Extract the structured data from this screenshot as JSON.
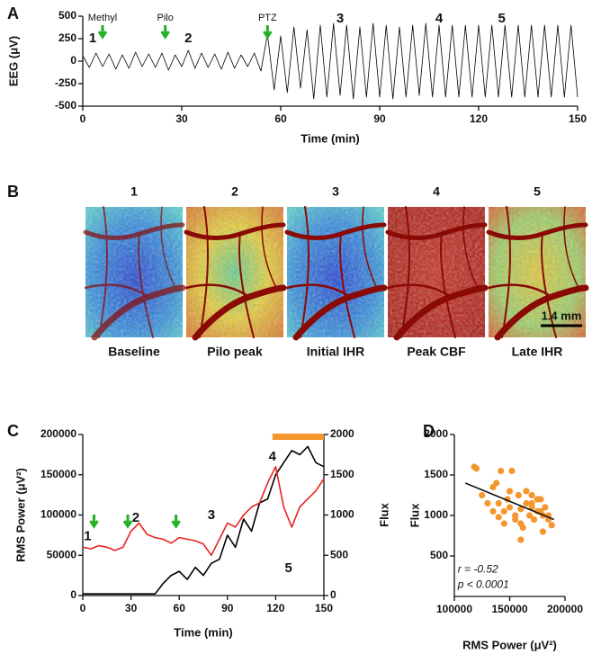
{
  "panels": [
    "A",
    "B",
    "C",
    "D"
  ],
  "images": {
    "items": [
      {
        "number": "1",
        "caption": "Baseline"
      },
      {
        "number": "2",
        "caption": "Pilo peak"
      },
      {
        "number": "3",
        "caption": "Initial IHR"
      },
      {
        "number": "4",
        "caption": "Peak CBF"
      },
      {
        "number": "5",
        "caption": "Late IHR"
      }
    ],
    "scale_bar": "1.4 mm"
  },
  "chart_data": [
    {
      "type": "line",
      "xlabel": "Time (min)",
      "ylabel": "EEG (μV)",
      "color": "#000000",
      "xlim": [
        0,
        150
      ],
      "xticks": [
        0,
        30,
        60,
        90,
        120,
        150
      ],
      "ylim": [
        -500,
        500
      ],
      "yticks": [
        500,
        250,
        0,
        -250,
        -500
      ],
      "x": [
        0,
        2,
        4,
        6,
        8,
        10,
        12,
        14,
        16,
        18,
        20,
        22,
        24,
        26,
        28,
        30,
        32,
        34,
        36,
        38,
        40,
        42,
        44,
        46,
        48,
        50,
        52,
        54,
        56,
        58,
        60,
        62,
        64,
        66,
        68,
        70,
        72,
        74,
        76,
        78,
        80,
        82,
        84,
        86,
        88,
        90,
        92,
        94,
        96,
        98,
        100,
        102,
        104,
        106,
        108,
        110,
        112,
        114,
        116,
        118,
        120,
        122,
        124,
        126,
        128,
        130,
        132,
        134,
        136,
        138,
        140,
        142,
        144,
        146,
        148,
        150
      ],
      "values": [
        60,
        -70,
        90,
        -60,
        80,
        -90,
        70,
        -80,
        100,
        -60,
        80,
        -70,
        90,
        -100,
        70,
        -60,
        120,
        -80,
        90,
        -70,
        80,
        -90,
        100,
        -80,
        70,
        -60,
        90,
        -110,
        300,
        -320,
        280,
        -350,
        380,
        -300,
        350,
        -420,
        400,
        -400,
        420,
        -380,
        400,
        -420,
        380,
        -400,
        420,
        -400,
        400,
        -420,
        380,
        -400,
        400,
        -380,
        420,
        -400,
        400,
        -400,
        400,
        -400,
        400,
        -400,
        400,
        -400,
        400,
        -400,
        400,
        -400,
        400,
        -400,
        400,
        -400,
        400,
        -400,
        400,
        -400,
        400,
        -400
      ],
      "annotations": [
        {
          "text": "Methyl",
          "x": 6,
          "y": 480,
          "color": "#22b022",
          "arrow": true
        },
        {
          "text": "Pilo",
          "x": 25,
          "y": 480,
          "color": "#22b022",
          "arrow": true
        },
        {
          "text": "PTZ",
          "x": 56,
          "y": 480,
          "color": "#22b022",
          "arrow": true
        },
        {
          "text": "1",
          "x": 3,
          "y": 250,
          "color": "#2c2cd0"
        },
        {
          "text": "2",
          "x": 32,
          "y": 250,
          "color": "#2c2cd0"
        },
        {
          "text": "3",
          "x": 78,
          "y": 470,
          "color": "#2c2cd0"
        },
        {
          "text": "4",
          "x": 108,
          "y": 470,
          "color": "#2c2cd0"
        },
        {
          "text": "5",
          "x": 127,
          "y": 470,
          "color": "#2c2cd0"
        }
      ]
    },
    {
      "type": "line",
      "xlabel": "Time (min)",
      "ylabel": "RMS Power (μV²)",
      "y2label": "Flux",
      "y2label_color": "#e8231f",
      "xlim": [
        0,
        150
      ],
      "xticks": [
        0,
        30,
        60,
        90,
        120,
        150
      ],
      "ylim": [
        0,
        200000
      ],
      "yticks": [
        0,
        50000,
        100000,
        150000,
        200000
      ],
      "y2lim": [
        0,
        2000
      ],
      "y2ticks": [
        0,
        500,
        1000,
        1500,
        2000
      ],
      "x": [
        0,
        5,
        10,
        15,
        20,
        25,
        30,
        35,
        40,
        45,
        50,
        55,
        60,
        65,
        70,
        75,
        80,
        85,
        90,
        95,
        100,
        105,
        110,
        115,
        120,
        125,
        130,
        135,
        140,
        145,
        150
      ],
      "series": [
        {
          "color": "#000000",
          "values": [
            2000,
            2000,
            2000,
            2000,
            2000,
            2000,
            2000,
            2000,
            2000,
            2000,
            15000,
            25000,
            30000,
            20000,
            35000,
            25000,
            40000,
            45000,
            75000,
            60000,
            95000,
            80000,
            115000,
            120000,
            150000,
            165000,
            180000,
            175000,
            185000,
            165000,
            160000
          ]
        },
        {
          "color": "#e8231f",
          "axis": "y2",
          "values": [
            600,
            580,
            620,
            600,
            560,
            600,
            800,
            900,
            760,
            720,
            700,
            650,
            720,
            700,
            680,
            640,
            500,
            700,
            900,
            850,
            1000,
            1100,
            1150,
            1400,
            1600,
            1100,
            850,
            1100,
            1200,
            1300,
            1450
          ]
        }
      ],
      "arrows": [
        7,
        28,
        58
      ],
      "arrow_color": "#22b022",
      "highlight": {
        "x": [
          118,
          150
        ],
        "color": "#f5962e"
      },
      "annotations": [
        {
          "text": "1",
          "x": 3,
          "y": 730,
          "axis": "y2",
          "color": "#2c2cd0"
        },
        {
          "text": "2",
          "x": 33,
          "y": 960,
          "axis": "y2",
          "color": "#2c2cd0"
        },
        {
          "text": "3",
          "x": 80,
          "y": 995,
          "axis": "y2",
          "color": "#2c2cd0"
        },
        {
          "text": "4",
          "x": 118,
          "y": 1720,
          "axis": "y2",
          "color": "#2c2cd0"
        },
        {
          "text": "5",
          "x": 128,
          "y": 335,
          "axis": "y2",
          "color": "#2c2cd0"
        }
      ]
    },
    {
      "type": "scatter",
      "xlabel": "RMS Power (μV²)",
      "ylabel": "Flux",
      "ylabel_color": "#e8231f",
      "color": "#f5962e",
      "xlim": [
        100000,
        200000
      ],
      "xticks": [
        100000,
        150000,
        200000
      ],
      "ylim": [
        0,
        2000
      ],
      "yticks": [
        500,
        1000,
        1500,
        2000
      ],
      "x": [
        118000,
        120000,
        125000,
        130000,
        135000,
        138000,
        140000,
        142000,
        145000,
        148000,
        150000,
        152000,
        155000,
        158000,
        160000,
        162000,
        165000,
        168000,
        170000,
        172000,
        175000,
        178000,
        180000,
        182000,
        185000,
        140000,
        150000,
        160000,
        170000,
        180000,
        145000,
        155000,
        165000,
        175000,
        185000,
        135000,
        160000,
        170000,
        178000,
        188000
      ],
      "values": [
        1600,
        1580,
        1250,
        1150,
        1050,
        1400,
        980,
        1550,
        900,
        1200,
        1100,
        1550,
        1000,
        1250,
        1080,
        850,
        1300,
        1000,
        1150,
        950,
        1200,
        1050,
        800,
        1100,
        950,
        1150,
        1300,
        700,
        1250,
        1000,
        1050,
        950,
        1150,
        1050,
        1000,
        1350,
        900,
        1100,
        1200,
        880
      ],
      "fit": {
        "x": [
          110000,
          190000
        ],
        "y": [
          1400,
          950
        ]
      },
      "annotations": [
        {
          "text": "r = -0.52",
          "x": 103000,
          "y": 330,
          "color": "#111111"
        },
        {
          "text": "p < 0.0001",
          "x": 103000,
          "y": 140,
          "color": "#111111"
        }
      ]
    }
  ]
}
